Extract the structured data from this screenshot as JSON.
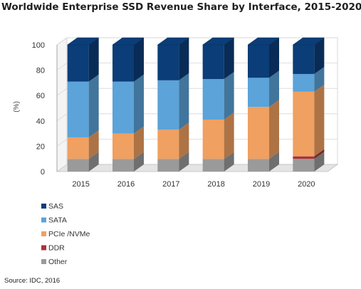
{
  "chart_data": {
    "type": "bar",
    "stacked": true,
    "title": "Worldwide Enterprise SSD Revenue Share by Interface, 2015-2020",
    "ylabel": "(%)",
    "xlabel": "",
    "ylim": [
      0,
      100
    ],
    "yticks": [
      0,
      20,
      40,
      60,
      80,
      100
    ],
    "categories": [
      "2015",
      "2016",
      "2017",
      "2018",
      "2019",
      "2020"
    ],
    "series": [
      {
        "name": "Other",
        "color": "#9a9a9a",
        "values": [
          10,
          10,
          10,
          10,
          10,
          10
        ]
      },
      {
        "name": "DDR",
        "color": "#a8343a",
        "values": [
          0,
          0,
          0,
          0,
          0,
          2
        ]
      },
      {
        "name": "PCIe /NVMe",
        "color": "#f0a060",
        "values": [
          17,
          20,
          23,
          31,
          41,
          51
        ]
      },
      {
        "name": "SATA",
        "color": "#5ba3d9",
        "values": [
          44,
          41,
          39,
          32,
          23,
          14
        ]
      },
      {
        "name": "SAS",
        "color": "#0b3d78",
        "values": [
          29,
          29,
          28,
          27,
          26,
          23
        ]
      }
    ],
    "legend_order": [
      "SAS",
      "SATA",
      "PCIe /NVMe",
      "DDR",
      "Other"
    ],
    "legend_position": "bottom-left",
    "grid": true
  },
  "source": "Source: IDC, 2016"
}
